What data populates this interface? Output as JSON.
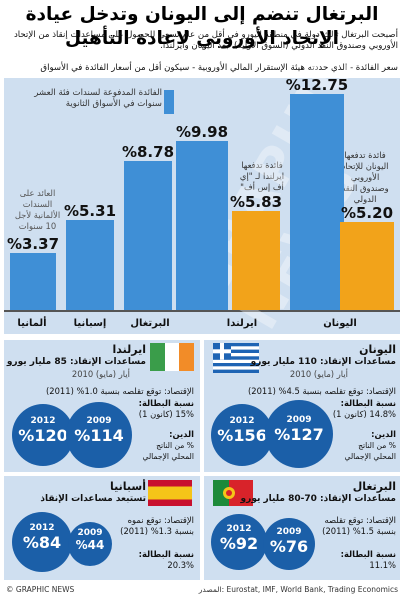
{
  "header": {
    "title": "البرتغال تنضم إلى اليونان وتدخل عيادة الإتحاد الأوروبي لاعادة التأهيل",
    "intro": "أصبحت البرتغال ثالث دولة في منطقة اليورو في أقل من عام تسعى للحصول على مساعدات إنقاذ من الإتحاد الأوروبي وصندوق النقد الدولي (السوق الأولية)، بعد اليونان وايرلندا.",
    "subtitle": "سعر الفائدة - الذي حددته هيئة الإستقرار المالي الأوروبية - سيكون أقل من أسعار الفائدة في الأسواق"
  },
  "legend": {
    "label": "الفائدة المدفوعة لسندات فئة العشر سنوات في الأسواق الثانوية",
    "colors": {
      "market": "#3f8fd6",
      "bailout": "#f2a31a"
    }
  },
  "chart_data": {
    "type": "bar",
    "categories": [
      "ألمانيا",
      "إسبانيا",
      "البرتغال",
      "ايرلندا",
      "ايرلندا",
      "اليونان",
      "اليونان"
    ],
    "category_labels": [
      "ألمانيا",
      "إسبانيا",
      "البرتغال",
      "ايرلندا",
      "اليونان"
    ],
    "values": [
      3.37,
      5.31,
      8.78,
      9.98,
      5.83,
      12.75,
      5.2
    ],
    "value_labels": [
      "%3.37",
      "%5.31",
      "%8.78",
      "%9.98",
      "%5.83",
      "%12.75",
      "%5.20"
    ],
    "series_type": [
      "market",
      "market",
      "market",
      "market",
      "bailout",
      "market",
      "bailout"
    ],
    "notes": {
      "germany": "العائد على السندات الألمانية لأجل 10 سنوات",
      "ireland": "فائدة تدفعها ايرلندا لـ \"إي أف إس أف\"",
      "greece": "فائدة تدفعها اليونان للإتحاد الأوروبي وصندوق النقد الدولي"
    },
    "ylim": [
      0,
      13
    ]
  },
  "panels": {
    "greece": {
      "name": "اليونان",
      "aid": "مساعدات الإنقاذ: 110 مليار يورو",
      "date": "أيار (مايو) 2010",
      "economy": "الإقتصاد: توقع تقلصه بنسبة 4.5% (2011)",
      "unemp_label": "نسبة البطالة:",
      "unemp": "14.8% (كانون 1)",
      "debt_label": "الدين:",
      "debt_note": "% من الناتج المحلي الإجمالي",
      "debt": [
        {
          "year": "2009",
          "value": "%127"
        },
        {
          "year": "2012",
          "value": "%156"
        }
      ]
    },
    "ireland": {
      "name": "ايرلندا",
      "aid": "مساعدات الإنقاذ: 85 مليار يورو",
      "date": "أيار (مايو) 2010",
      "economy": "الإقتصاد: توقع تقلصه بنسبة 1.0% (2011)",
      "unemp_label": "نسبة البطالة:",
      "unemp": "15% (كانون 1)",
      "debt_label": "الدين:",
      "debt_note": "% من الناتج المحلي الإجمالي",
      "debt": [
        {
          "year": "2009",
          "value": "%114"
        },
        {
          "year": "2012",
          "value": "%120"
        }
      ]
    },
    "portugal": {
      "name": "البرتغال",
      "aid": "مساعدات الإنقاذ: 70-80 مليار يورو",
      "economy": "الإقتصاد: توقع تقلصه بنسبة 1.5% (2011)",
      "unemp_label": "نسبة البطالة:",
      "unemp": "11.1%",
      "debt": [
        {
          "year": "2009",
          "value": "%76"
        },
        {
          "year": "2012",
          "value": "%92"
        }
      ]
    },
    "spain": {
      "name": "أسبانيا",
      "aid": "تستبعد مساعدات الإنقاذ",
      "economy": "الإقتصاد: توقع نموه بنسبة 1.3% (2011)",
      "unemp_label": "نسبة البطالة:",
      "unemp": "20.3%",
      "debt": [
        {
          "year": "2009",
          "value": "%44"
        },
        {
          "year": "2012",
          "value": "%84"
        }
      ]
    }
  },
  "footer": {
    "source": "المصدر: Eurostat, IMF, World Bank, Trading Economics",
    "credit": "© GRAPHIC NEWS"
  },
  "watermark": "GRAPHIC NEWS"
}
